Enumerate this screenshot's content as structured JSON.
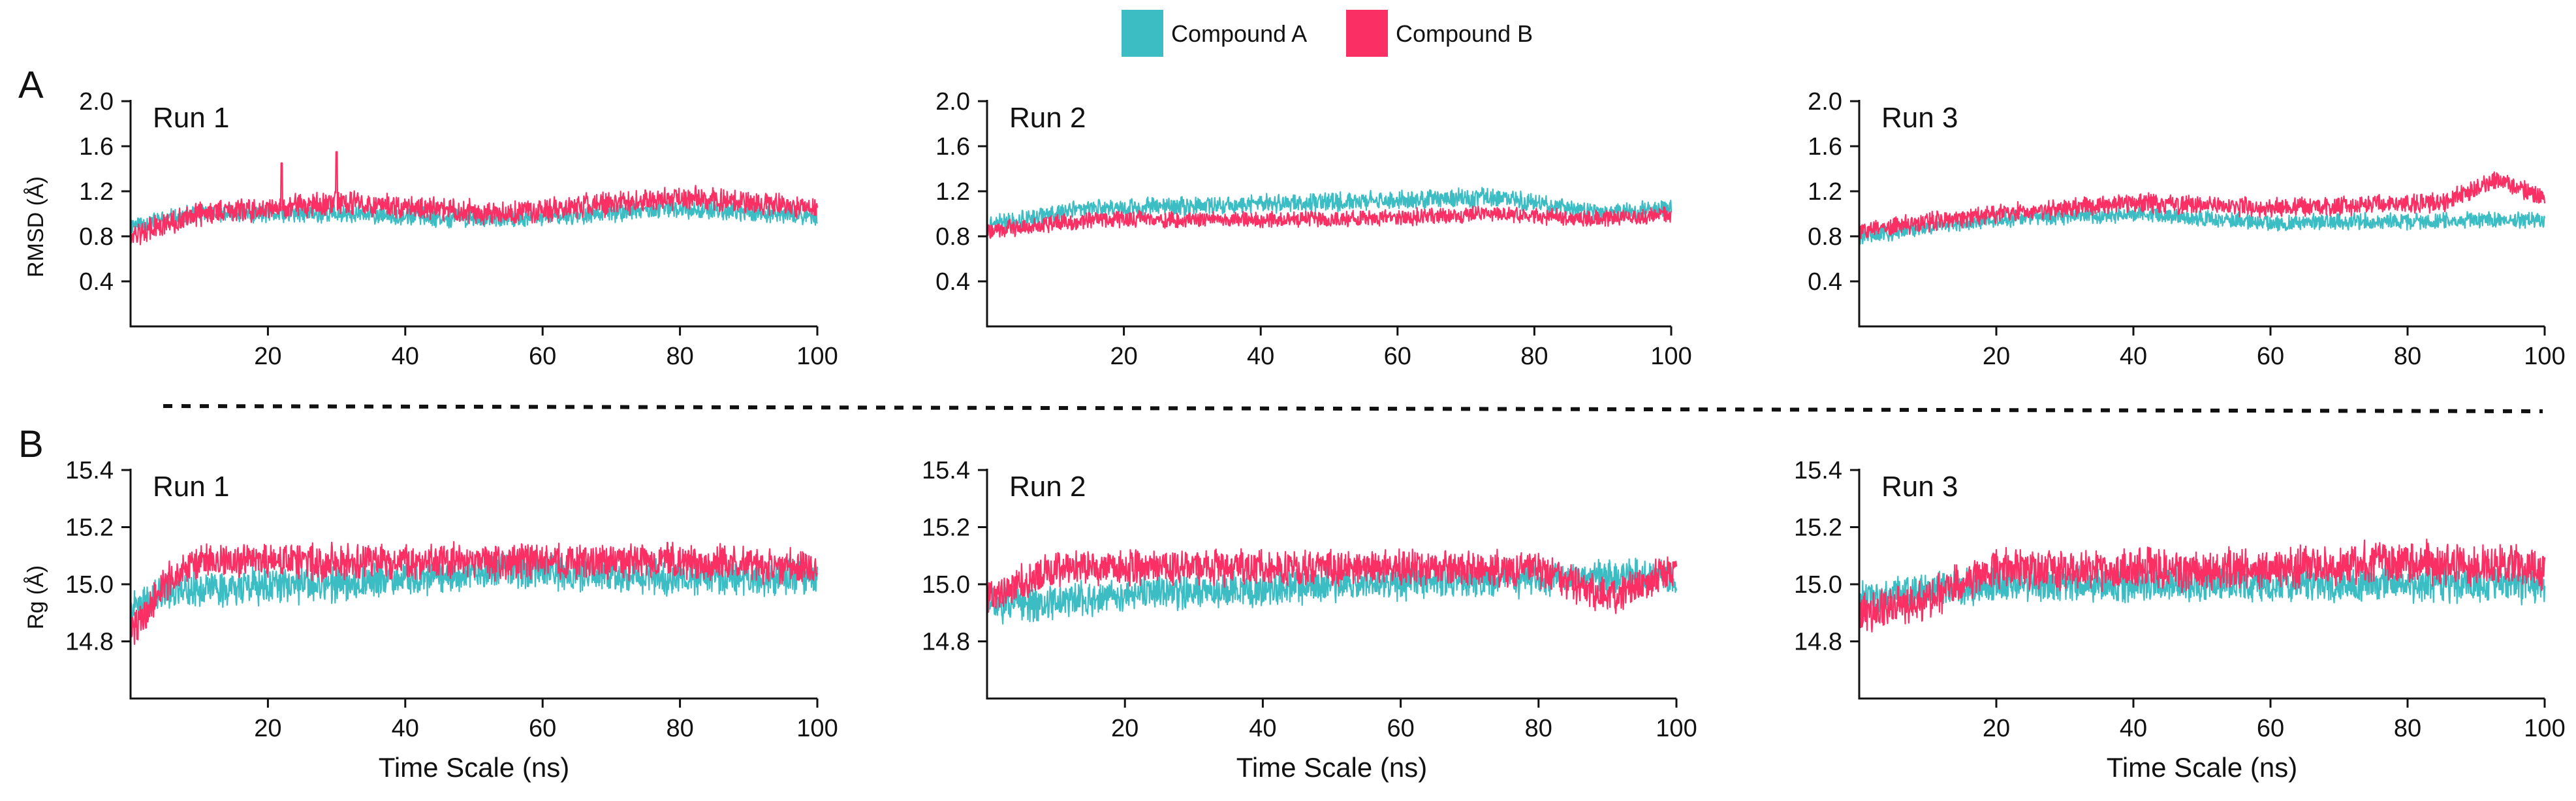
{
  "legend": [
    {
      "label": "Compound A",
      "color": "#3cbcc3"
    },
    {
      "label": "Compound B",
      "color": "#fa3064"
    }
  ],
  "chart_data": [
    {
      "type": "line",
      "panel": "A",
      "title": "Run 1",
      "xlabel": "",
      "ylabel": "RMSD (Å)",
      "xlim": [
        0,
        100
      ],
      "ylim": [
        0,
        2.0
      ],
      "xticks": [
        20,
        40,
        60,
        80,
        100
      ],
      "yticks": [
        0.4,
        0.8,
        1.2,
        1.6,
        2.0
      ],
      "series": [
        {
          "name": "Compound A",
          "mean": [
            [
              0,
              0.9
            ],
            [
              10,
              1.0
            ],
            [
              30,
              1.0
            ],
            [
              55,
              0.95
            ],
            [
              80,
              1.05
            ],
            [
              100,
              0.98
            ]
          ],
          "noise": 0.08,
          "seed": 11
        },
        {
          "name": "Compound B",
          "mean": [
            [
              0,
              0.8
            ],
            [
              10,
              1.0
            ],
            [
              30,
              1.1
            ],
            [
              55,
              1.0
            ],
            [
              80,
              1.15
            ],
            [
              100,
              1.05
            ]
          ],
          "noise": 0.1,
          "spikes": [
            [
              30,
              1.55
            ],
            [
              22,
              1.45
            ]
          ],
          "seed": 12
        }
      ]
    },
    {
      "type": "line",
      "panel": "A",
      "title": "Run 2",
      "xlabel": "",
      "ylabel": "",
      "xlim": [
        0,
        100
      ],
      "ylim": [
        0,
        2.0
      ],
      "xticks": [
        20,
        40,
        60,
        80,
        100
      ],
      "yticks": [
        0.4,
        0.8,
        1.2,
        1.6,
        2.0
      ],
      "series": [
        {
          "name": "Compound A",
          "mean": [
            [
              0,
              0.9
            ],
            [
              15,
              1.05
            ],
            [
              50,
              1.1
            ],
            [
              75,
              1.15
            ],
            [
              90,
              1.0
            ],
            [
              100,
              1.05
            ]
          ],
          "noise": 0.08,
          "seed": 21
        },
        {
          "name": "Compound B",
          "mean": [
            [
              0,
              0.85
            ],
            [
              15,
              0.95
            ],
            [
              50,
              0.95
            ],
            [
              75,
              1.0
            ],
            [
              90,
              0.95
            ],
            [
              100,
              1.0
            ]
          ],
          "noise": 0.07,
          "seed": 22
        }
      ]
    },
    {
      "type": "line",
      "panel": "A",
      "title": "Run 3",
      "xlabel": "",
      "ylabel": "",
      "xlim": [
        0,
        100
      ],
      "ylim": [
        0,
        2.0
      ],
      "xticks": [
        20,
        40,
        60,
        80,
        100
      ],
      "yticks": [
        0.4,
        0.8,
        1.2,
        1.6,
        2.0
      ],
      "series": [
        {
          "name": "Compound A",
          "mean": [
            [
              0,
              0.8
            ],
            [
              20,
              0.95
            ],
            [
              40,
              1.0
            ],
            [
              60,
              0.92
            ],
            [
              100,
              0.95
            ]
          ],
          "noise": 0.07,
          "seed": 31
        },
        {
          "name": "Compound B",
          "mean": [
            [
              0,
              0.85
            ],
            [
              20,
              1.0
            ],
            [
              40,
              1.1
            ],
            [
              60,
              1.05
            ],
            [
              85,
              1.1
            ],
            [
              93,
              1.3
            ],
            [
              100,
              1.15
            ]
          ],
          "noise": 0.08,
          "seed": 32
        }
      ]
    },
    {
      "type": "line",
      "panel": "B",
      "title": "Run 1",
      "xlabel": "Time Scale (ns)",
      "ylabel": "Rg (Å)",
      "xlim": [
        0,
        100
      ],
      "ylim": [
        14.6,
        15.4
      ],
      "xticks": [
        20,
        40,
        60,
        80,
        100
      ],
      "yticks": [
        14.8,
        15.0,
        15.2,
        15.4
      ],
      "series": [
        {
          "name": "Compound A",
          "mean": [
            [
              0,
              14.9
            ],
            [
              5,
              14.98
            ],
            [
              30,
              15.0
            ],
            [
              55,
              15.05
            ],
            [
              80,
              15.02
            ],
            [
              100,
              15.02
            ]
          ],
          "noise": 0.06,
          "seed": 41
        },
        {
          "name": "Compound B",
          "mean": [
            [
              0,
              14.82
            ],
            [
              5,
              15.0
            ],
            [
              10,
              15.08
            ],
            [
              50,
              15.08
            ],
            [
              80,
              15.08
            ],
            [
              100,
              15.06
            ]
          ],
          "noise": 0.06,
          "seed": 42
        }
      ]
    },
    {
      "type": "line",
      "panel": "B",
      "title": "Run 2",
      "xlabel": "Time Scale (ns)",
      "ylabel": "",
      "xlim": [
        0,
        100
      ],
      "ylim": [
        14.6,
        15.4
      ],
      "xticks": [
        20,
        40,
        60,
        80,
        100
      ],
      "yticks": [
        14.8,
        15.0,
        15.2,
        15.4
      ],
      "series": [
        {
          "name": "Compound A",
          "mean": [
            [
              0,
              14.92
            ],
            [
              20,
              14.96
            ],
            [
              50,
              15.0
            ],
            [
              80,
              15.02
            ],
            [
              100,
              15.02
            ]
          ],
          "noise": 0.06,
          "seed": 51
        },
        {
          "name": "Compound B",
          "mean": [
            [
              0,
              14.95
            ],
            [
              10,
              15.06
            ],
            [
              50,
              15.06
            ],
            [
              80,
              15.05
            ],
            [
              90,
              14.95
            ],
            [
              100,
              15.05
            ]
          ],
          "noise": 0.06,
          "seed": 52
        }
      ]
    },
    {
      "type": "line",
      "panel": "B",
      "title": "Run 3",
      "xlabel": "Time Scale (ns)",
      "ylabel": "",
      "xlim": [
        0,
        100
      ],
      "ylim": [
        14.6,
        15.4
      ],
      "xticks": [
        20,
        40,
        60,
        80,
        100
      ],
      "yticks": [
        14.8,
        15.0,
        15.2,
        15.4
      ],
      "series": [
        {
          "name": "Compound A",
          "mean": [
            [
              0,
              14.95
            ],
            [
              20,
              15.0
            ],
            [
              50,
              15.0
            ],
            [
              100,
              15.0
            ]
          ],
          "noise": 0.06,
          "seed": 61
        },
        {
          "name": "Compound B",
          "mean": [
            [
              0,
              14.9
            ],
            [
              10,
              14.95
            ],
            [
              20,
              15.05
            ],
            [
              50,
              15.05
            ],
            [
              80,
              15.08
            ],
            [
              100,
              15.06
            ]
          ],
          "noise": 0.07,
          "seed": 62
        }
      ]
    }
  ]
}
